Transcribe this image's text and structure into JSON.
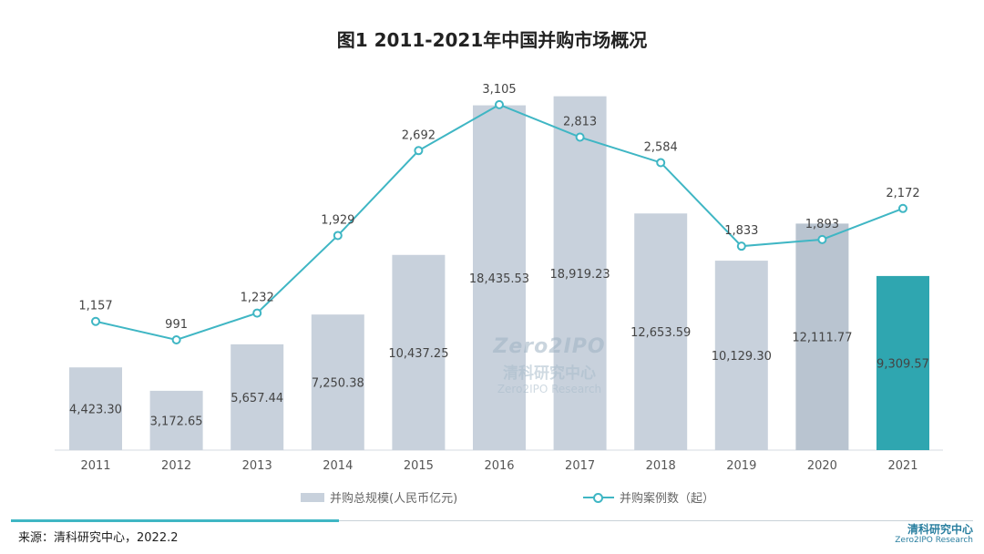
{
  "title": "图1 2011-2021年中国并购市场概况",
  "source": "来源：清科研究中心，2022.2",
  "logo": {
    "cn": "清科研究中心",
    "en": "Zero2IPO Research"
  },
  "watermark": {
    "logo": "Zero2IPO",
    "cn": "清科研究中心",
    "en": "Zero2IPO Research"
  },
  "colors": {
    "bar": "#c8d1dc",
    "bar_2020": "#b9c4d0",
    "bar_2021": "#2fa6b0",
    "line": "#3fb6c4"
  },
  "chart_data": {
    "type": "bar+line",
    "categories": [
      "2011",
      "2012",
      "2013",
      "2014",
      "2015",
      "2016",
      "2017",
      "2018",
      "2019",
      "2020",
      "2021"
    ],
    "series": [
      {
        "name": "并购总规模(人民币亿元)",
        "type": "bar",
        "values": [
          4423.3,
          3172.65,
          5657.44,
          7250.38,
          10437.25,
          18435.53,
          18919.23,
          12653.59,
          10129.3,
          12111.77,
          9309.57
        ],
        "labels": [
          "4,423.30",
          "3,172.65",
          "5,657.44",
          "7,250.38",
          "10,437.25",
          "18,435.53",
          "18,919.23",
          "12,653.59",
          "10,129.30",
          "12,111.77",
          "9,309.57"
        ]
      },
      {
        "name": "并购案例数（起）",
        "type": "line",
        "values": [
          1157,
          991,
          1232,
          1929,
          2692,
          3105,
          2813,
          2584,
          1833,
          1893,
          2172
        ],
        "labels": [
          "1,157",
          "991",
          "1,232",
          "1,929",
          "2,692",
          "3,105",
          "2,813",
          "2,584",
          "1,833",
          "1,893",
          "2,172"
        ]
      }
    ],
    "bar_ylim": [
      0,
      19000
    ],
    "line_ylim": [
      0,
      3800
    ],
    "legend_position": "bottom",
    "grid": false
  }
}
